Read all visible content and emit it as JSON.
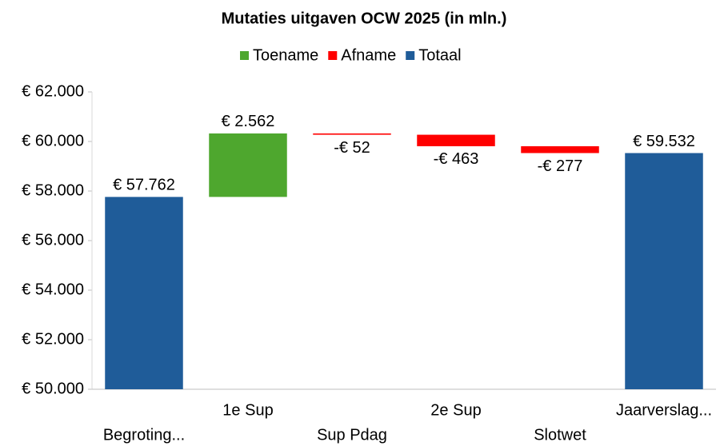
{
  "chart_data": {
    "type": "waterfall",
    "title": "Mutaties uitgaven OCW 2025 (in mln.)",
    "categories": [
      "Begroting...",
      "1e Sup",
      "Sup Pdag",
      "2e Sup",
      "Slotwet",
      "Jaarverslag..."
    ],
    "values": [
      57762,
      2562,
      -52,
      -463,
      -277,
      59532
    ],
    "value_labels": [
      "€ 57.762",
      "€ 2.562",
      "-€ 52",
      "-€ 463",
      "-€ 277",
      "€ 59.532"
    ],
    "measure": [
      "total",
      "relative",
      "relative",
      "relative",
      "relative",
      "total"
    ],
    "legend": [
      {
        "name": "Toename",
        "color": "#4ea72e"
      },
      {
        "name": "Afname",
        "color": "#ff0000"
      },
      {
        "name": "Totaal",
        "color": "#1f5c99"
      }
    ],
    "ylim": [
      50000,
      62000
    ],
    "yticks": [
      {
        "value": 50000,
        "label": "€ 50.000"
      },
      {
        "value": 52000,
        "label": "€ 52.000"
      },
      {
        "value": 54000,
        "label": "€ 54.000"
      },
      {
        "value": 56000,
        "label": "€ 56.000"
      },
      {
        "value": 58000,
        "label": "€ 58.000"
      },
      {
        "value": 60000,
        "label": "€ 60.000"
      },
      {
        "value": 62000,
        "label": "€ 62.000"
      }
    ]
  }
}
